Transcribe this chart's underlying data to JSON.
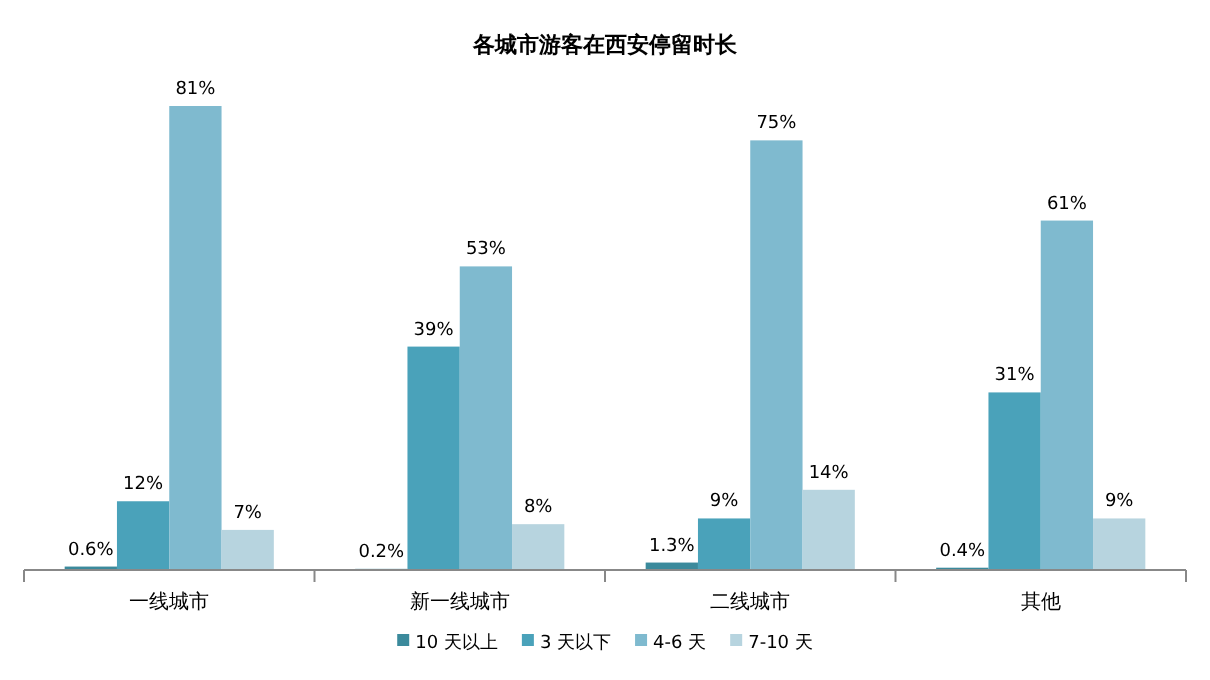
{
  "chart_data": {
    "type": "bar",
    "title": "各城市游客在西安停留时长",
    "categories": [
      "一线城市",
      "新一线城市",
      "二线城市",
      "其他"
    ],
    "series": [
      {
        "name": "10 天以上",
        "color": "#3b8a9c",
        "values": [
          0.6,
          0.2,
          1.3,
          0.4
        ],
        "value_labels": [
          "0.6%",
          "0.2%",
          "1.3%",
          "0.4%"
        ]
      },
      {
        "name": "3 天以下",
        "color": "#4aa2ba",
        "values": [
          12,
          39,
          9,
          31
        ],
        "value_labels": [
          "12%",
          "39%",
          "9%",
          "31%"
        ]
      },
      {
        "name": "4-6 天",
        "color": "#7fbacf",
        "values": [
          81,
          53,
          75,
          61
        ],
        "value_labels": [
          "81%",
          "53%",
          "75%",
          "61%"
        ]
      },
      {
        "name": "7-10 天",
        "color": "#b7d4df",
        "values": [
          7,
          8,
          14,
          9
        ],
        "value_labels": [
          "7%",
          "8%",
          "14%",
          "9%"
        ]
      }
    ],
    "grid": false,
    "legend": "bottom"
  }
}
